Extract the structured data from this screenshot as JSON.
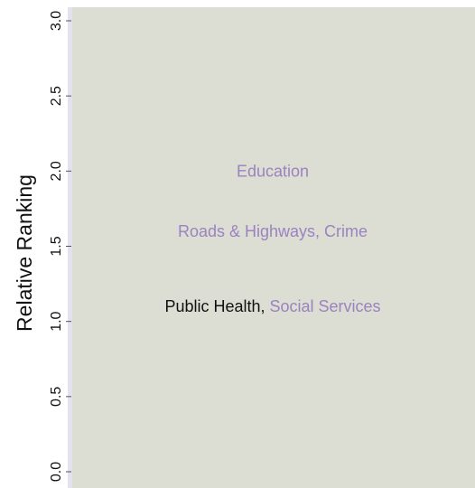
{
  "chart_data": {
    "type": "scatter",
    "title": "",
    "xlabel": "",
    "ylabel": "Relative Ranking",
    "ylim": [
      0.0,
      3.0
    ],
    "yticks": [
      "0.0",
      "0.5",
      "1.0",
      "1.5",
      "2.0",
      "2.5",
      "3.0"
    ],
    "grid": false,
    "legend": "none",
    "points": [
      {
        "y": 2.0,
        "parts": [
          {
            "text": "Education",
            "color": "#9b83c0"
          }
        ]
      },
      {
        "y": 1.6,
        "parts": [
          {
            "text": "Roads & Highways, Crime",
            "color": "#9b83c0"
          }
        ]
      },
      {
        "y": 1.1,
        "parts": [
          {
            "text": "Public Health, ",
            "color": "#111111"
          },
          {
            "text": "Social Services",
            "color": "#9b83c0"
          }
        ]
      }
    ],
    "colors": {
      "plot_background": "#dcddd3",
      "left_strip": "#e4e1ee",
      "axis_text": "#111111",
      "label_purple": "#9b83c0",
      "label_black": "#111111"
    }
  }
}
